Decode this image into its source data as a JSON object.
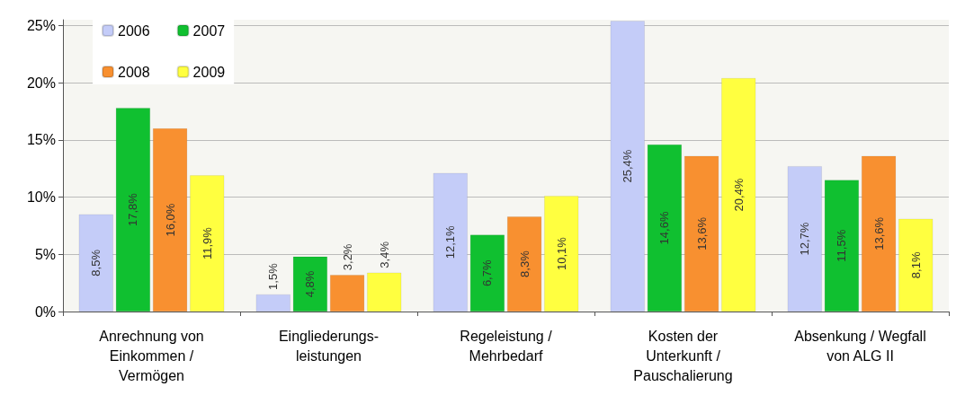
{
  "chart_data": {
    "type": "bar",
    "categories": [
      "Anrechnung von\nEinkommen /\nVermögen",
      "Eingliederungs-\nleistungen",
      "Regeleistung /\nMehrbedarf",
      "Kosten der\nUnterkunft /\nPauschalierung",
      "Absenkung / Wegfall\nvon ALG II"
    ],
    "series": [
      {
        "name": "2006",
        "color": "#c4ccf8",
        "values": [
          8.5,
          1.5,
          12.1,
          25.4,
          12.7
        ],
        "value_labels": [
          "8,5%",
          "1,5%",
          "12,1%",
          "25,4%",
          "12,7%"
        ]
      },
      {
        "name": "2007",
        "color": "#10c030",
        "values": [
          17.8,
          4.8,
          6.7,
          14.6,
          11.5
        ],
        "value_labels": [
          "17,8%",
          "4,8%",
          "6,7%",
          "14,6%",
          "11,5%"
        ]
      },
      {
        "name": "2008",
        "color": "#f89030",
        "values": [
          16.0,
          3.2,
          8.3,
          13.6,
          13.6
        ],
        "value_labels": [
          "16,0%",
          "3,2%",
          "8,3%",
          "13,6%",
          "13,6%"
        ]
      },
      {
        "name": "2009",
        "color": "#ffff40",
        "values": [
          11.9,
          3.4,
          10.1,
          20.4,
          8.1
        ],
        "value_labels": [
          "11,9%",
          "3,4%",
          "10,1%",
          "20,4%",
          "8,1%"
        ]
      }
    ],
    "ylim": [
      0,
      25.5
    ],
    "yticks": [
      {
        "value": 0,
        "label": "0%"
      },
      {
        "value": 5,
        "label": "5%"
      },
      {
        "value": 10,
        "label": "10%"
      },
      {
        "value": 15,
        "label": "15%"
      },
      {
        "value": 20,
        "label": "20%"
      },
      {
        "value": 25,
        "label": "25%"
      }
    ],
    "grid": "y",
    "legend": "top left"
  }
}
